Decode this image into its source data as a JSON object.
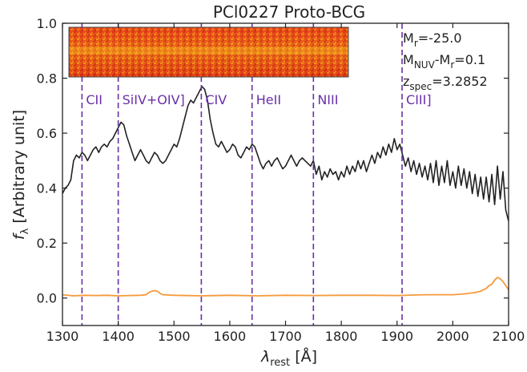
{
  "chart_data": {
    "type": "line",
    "title": "PCl0227 Proto-BCG",
    "xlabel": {
      "main": "λ",
      "sub": "rest",
      "unit": " [Å]"
    },
    "ylabel": {
      "main": "f",
      "sub": "λ",
      "unit": " [Arbitrary unit]"
    },
    "xlim": [
      1300,
      2100
    ],
    "ylim": [
      -0.1,
      1.0
    ],
    "xticks": [
      1300,
      1400,
      1500,
      1600,
      1700,
      1800,
      1900,
      2000,
      2100
    ],
    "yticks": [
      0.0,
      0.2,
      0.4,
      0.6,
      0.8,
      1.0
    ],
    "yticks_labels": [
      "0.0",
      "0.2",
      "0.4",
      "0.6",
      "0.8",
      "1.0"
    ],
    "grid": false,
    "colors": {
      "spectrum": "#222222",
      "error": "#f59a3c",
      "lines": "#6a2fa8"
    },
    "series": [
      {
        "role": "spectrum",
        "x": [
          1300,
          1305,
          1310,
          1315,
          1320,
          1325,
          1330,
          1335,
          1340,
          1345,
          1350,
          1355,
          1360,
          1365,
          1370,
          1375,
          1380,
          1385,
          1390,
          1395,
          1400,
          1405,
          1410,
          1415,
          1420,
          1425,
          1430,
          1435,
          1440,
          1445,
          1450,
          1455,
          1460,
          1465,
          1470,
          1475,
          1480,
          1485,
          1490,
          1495,
          1500,
          1505,
          1510,
          1515,
          1520,
          1525,
          1530,
          1535,
          1540,
          1545,
          1550,
          1555,
          1560,
          1565,
          1570,
          1575,
          1580,
          1585,
          1590,
          1595,
          1600,
          1605,
          1610,
          1615,
          1620,
          1625,
          1630,
          1635,
          1640,
          1645,
          1650,
          1655,
          1660,
          1665,
          1670,
          1675,
          1680,
          1685,
          1690,
          1695,
          1700,
          1705,
          1710,
          1715,
          1720,
          1725,
          1730,
          1735,
          1740,
          1745,
          1750,
          1755,
          1760,
          1765,
          1770,
          1775,
          1780,
          1785,
          1790,
          1795,
          1800,
          1805,
          1810,
          1815,
          1820,
          1825,
          1830,
          1835,
          1840,
          1845,
          1850,
          1855,
          1860,
          1865,
          1870,
          1875,
          1880,
          1885,
          1890,
          1895,
          1900,
          1905,
          1910,
          1915,
          1920,
          1925,
          1930,
          1935,
          1940,
          1945,
          1950,
          1955,
          1960,
          1965,
          1970,
          1975,
          1980,
          1985,
          1990,
          1995,
          2000,
          2005,
          2010,
          2015,
          2020,
          2025,
          2030,
          2035,
          2040,
          2045,
          2050,
          2055,
          2060,
          2065,
          2070,
          2075,
          2080,
          2085,
          2090,
          2095,
          2100
        ],
        "y": [
          0.38,
          0.4,
          0.41,
          0.43,
          0.5,
          0.52,
          0.51,
          0.53,
          0.52,
          0.5,
          0.52,
          0.54,
          0.55,
          0.53,
          0.55,
          0.56,
          0.55,
          0.57,
          0.58,
          0.6,
          0.62,
          0.64,
          0.63,
          0.59,
          0.56,
          0.53,
          0.5,
          0.52,
          0.54,
          0.52,
          0.5,
          0.49,
          0.51,
          0.53,
          0.52,
          0.5,
          0.49,
          0.5,
          0.52,
          0.54,
          0.56,
          0.55,
          0.58,
          0.62,
          0.66,
          0.7,
          0.72,
          0.71,
          0.73,
          0.75,
          0.77,
          0.76,
          0.72,
          0.65,
          0.6,
          0.56,
          0.55,
          0.57,
          0.55,
          0.53,
          0.54,
          0.56,
          0.55,
          0.52,
          0.51,
          0.53,
          0.55,
          0.54,
          0.56,
          0.55,
          0.52,
          0.49,
          0.47,
          0.49,
          0.5,
          0.48,
          0.5,
          0.51,
          0.49,
          0.47,
          0.48,
          0.5,
          0.52,
          0.5,
          0.48,
          0.5,
          0.51,
          0.5,
          0.49,
          0.48,
          0.5,
          0.45,
          0.48,
          0.43,
          0.46,
          0.44,
          0.47,
          0.45,
          0.46,
          0.43,
          0.46,
          0.44,
          0.48,
          0.45,
          0.48,
          0.46,
          0.5,
          0.47,
          0.5,
          0.46,
          0.49,
          0.52,
          0.49,
          0.53,
          0.51,
          0.55,
          0.52,
          0.56,
          0.53,
          0.58,
          0.54,
          0.56,
          0.52,
          0.48,
          0.51,
          0.46,
          0.5,
          0.45,
          0.49,
          0.44,
          0.48,
          0.43,
          0.49,
          0.42,
          0.5,
          0.41,
          0.48,
          0.42,
          0.5,
          0.41,
          0.46,
          0.4,
          0.48,
          0.41,
          0.47,
          0.4,
          0.46,
          0.38,
          0.45,
          0.37,
          0.44,
          0.36,
          0.44,
          0.35,
          0.45,
          0.34,
          0.48,
          0.36,
          0.46,
          0.32,
          0.28
        ]
      },
      {
        "role": "error",
        "x": [
          1300,
          1320,
          1340,
          1360,
          1380,
          1400,
          1420,
          1440,
          1450,
          1455,
          1460,
          1465,
          1470,
          1475,
          1480,
          1500,
          1550,
          1600,
          1650,
          1700,
          1750,
          1800,
          1850,
          1900,
          1950,
          2000,
          2020,
          2040,
          2050,
          2060,
          2065,
          2070,
          2075,
          2080,
          2085,
          2090,
          2095,
          2100
        ],
        "y": [
          0.012,
          0.008,
          0.01,
          0.009,
          0.01,
          0.008,
          0.009,
          0.01,
          0.012,
          0.02,
          0.025,
          0.027,
          0.025,
          0.017,
          0.012,
          0.01,
          0.008,
          0.01,
          0.008,
          0.01,
          0.009,
          0.01,
          0.01,
          0.009,
          0.012,
          0.012,
          0.015,
          0.02,
          0.025,
          0.035,
          0.045,
          0.05,
          0.065,
          0.075,
          0.07,
          0.06,
          0.045,
          0.03
        ]
      }
    ],
    "emission_lines": [
      {
        "x": 1335,
        "label": "CII"
      },
      {
        "x": 1400,
        "label": "SiIV+OIV]"
      },
      {
        "x": 1549,
        "label": "CIV"
      },
      {
        "x": 1640,
        "label": "HeII"
      },
      {
        "x": 1750,
        "label": "NIII"
      },
      {
        "x": 1909,
        "label": "CIII]"
      }
    ],
    "annotations": [
      {
        "parts": [
          {
            "t": "M"
          },
          {
            "t": "r",
            "sub": true
          },
          {
            "t": "=-25.0"
          }
        ]
      },
      {
        "parts": [
          {
            "t": "M"
          },
          {
            "t": "NUV",
            "sub": true
          },
          {
            "t": "-M"
          },
          {
            "t": "r",
            "sub": true
          },
          {
            "t": "=0.1"
          }
        ]
      },
      {
        "parts": [
          {
            "t": "z"
          },
          {
            "t": "spec",
            "sub": true
          },
          {
            "t": "=3.2852"
          }
        ]
      }
    ]
  }
}
